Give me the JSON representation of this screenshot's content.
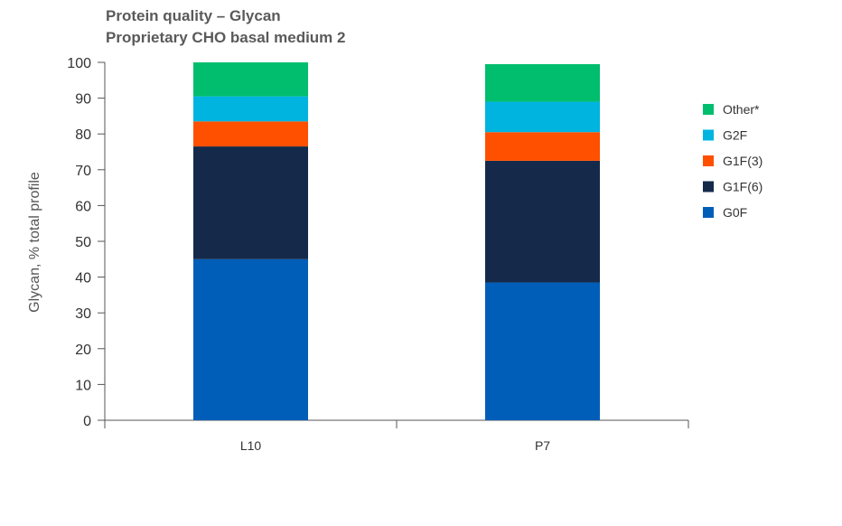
{
  "chart_data": {
    "type": "bar",
    "stacked": true,
    "title": "Protein quality – Glycan",
    "subtitle": "Proprietary CHO basal medium 2",
    "xlabel": "",
    "ylabel": "Glycan, % total profile",
    "ylim": [
      0,
      100
    ],
    "yticks": [
      0,
      10,
      20,
      30,
      40,
      50,
      60,
      70,
      80,
      90,
      100
    ],
    "categories": [
      "L10",
      "P7"
    ],
    "series": [
      {
        "name": "G0F",
        "color": "#005EB8",
        "values": [
          45,
          38.5
        ]
      },
      {
        "name": "G1F(6)",
        "color": "#152A4A",
        "values": [
          31.5,
          34
        ]
      },
      {
        "name": "G1F(3)",
        "color": "#FF5000",
        "values": [
          7,
          8
        ]
      },
      {
        "name": "G2F",
        "color": "#00B4E0",
        "values": [
          7,
          8.5
        ]
      },
      {
        "name": "Other*",
        "color": "#00BE6E",
        "values": [
          9.5,
          10.5
        ]
      }
    ],
    "legend_position": "right"
  }
}
